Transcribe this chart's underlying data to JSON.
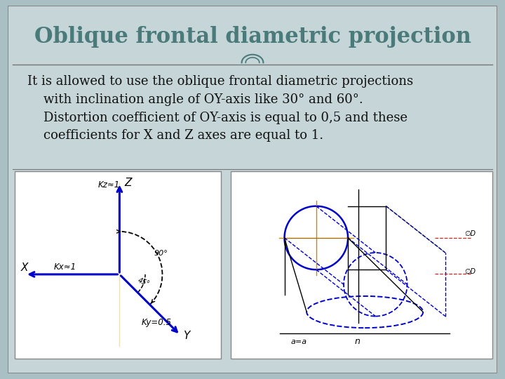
{
  "title": "Oblique frontal diametric projection",
  "body_line1": "It is allowed to use the oblique frontal diametric projections",
  "body_line2": "    with inclination angle of OY-axis like 30° and 60°.",
  "body_line3": "    Distortion coefficient of OY-axis is equal to 0,5 and these",
  "body_line4": "    coefficients for X and Z axes are equal to 1.",
  "bg_outer": "#aabfc4",
  "bg_slide": "#c5d5d8",
  "bg_white": "#ffffff",
  "title_color": "#4a7a7a",
  "title_fontsize": 22,
  "body_fontsize": 13,
  "border_color": "#888888",
  "axis_color_blue": "#0000cc",
  "circle_color": "#0000cc",
  "dashed_color": "#0000cc",
  "orange_cross": "#cc8800",
  "separator_color": "#777777"
}
